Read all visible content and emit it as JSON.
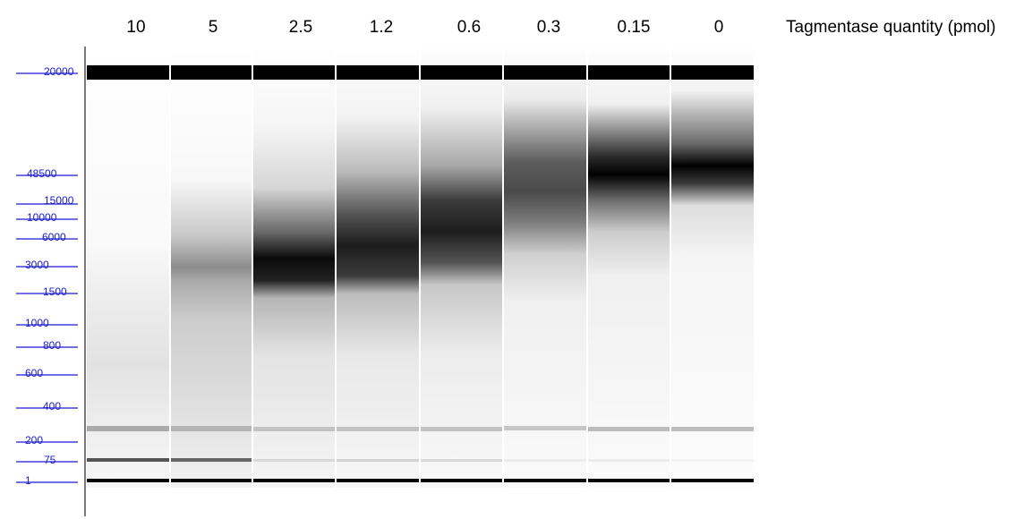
{
  "axis_title": "Tagmentase quantity (pmol)",
  "lanes": [
    {
      "label": "10"
    },
    {
      "label": "5"
    },
    {
      "label": "2.5"
    },
    {
      "label": "1.2"
    },
    {
      "label": "0.6"
    },
    {
      "label": "0.3"
    },
    {
      "label": "0.15"
    },
    {
      "label": "0"
    }
  ],
  "ladder": [
    {
      "label": "20000"
    },
    {
      "label": "48500"
    },
    {
      "label": "15000"
    },
    {
      "label": "10000"
    },
    {
      "label": "6000"
    },
    {
      "label": "3000"
    },
    {
      "label": "1500"
    },
    {
      "label": "1000"
    },
    {
      "label": "800"
    },
    {
      "label": "600"
    },
    {
      "label": "400"
    },
    {
      "label": "200"
    },
    {
      "label": "75"
    },
    {
      "label": "1"
    }
  ],
  "colors": {
    "ladder": "#1a1ad0",
    "band": "#000000",
    "background": "#ffffff"
  }
}
